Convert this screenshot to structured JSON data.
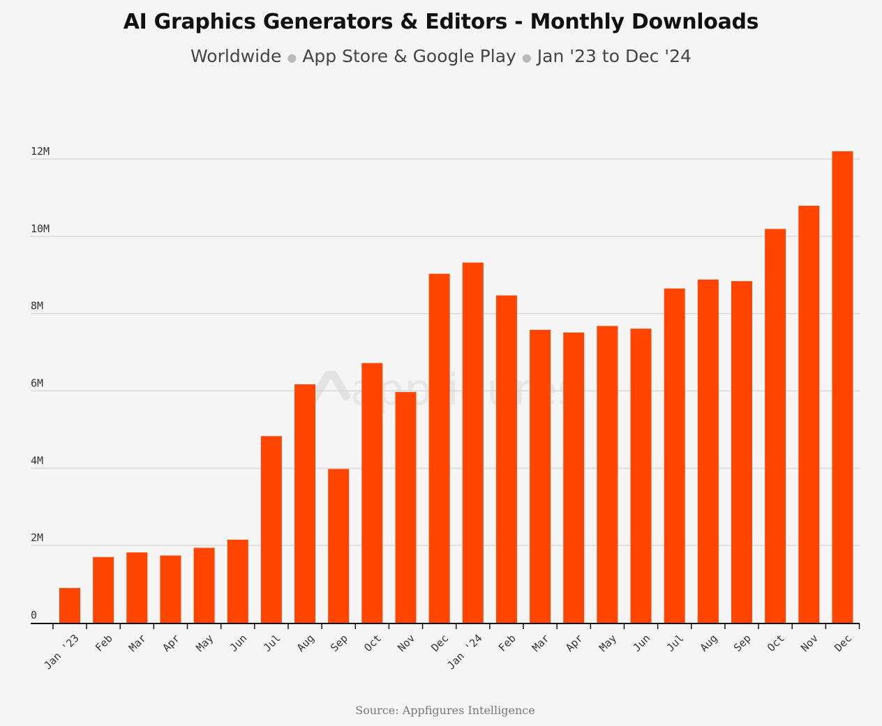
{
  "header": {
    "title": "AI Graphics Generators & Editors - Monthly Downloads",
    "subtitle_parts": [
      "Worldwide",
      "App Store & Google Play",
      "Jan '23 to Dec '24"
    ]
  },
  "footer": {
    "source": "Source: Appfigures Intelligence"
  },
  "watermark": {
    "text": "appfigures",
    "icon": "appfigures-logo-icon"
  },
  "colors": {
    "bar": "#ff4500",
    "grid": "#d8d8d8",
    "axis": "#111111",
    "background": "#f5f5f5"
  },
  "chart_data": {
    "type": "bar",
    "title": "AI Graphics Generators & Editors - Monthly Downloads",
    "subtitle": "Worldwide · App Store & Google Play · Jan '23 to Dec '24",
    "xlabel": "",
    "ylabel": "",
    "ylim": [
      0,
      12000000
    ],
    "yticks": [
      0,
      2000000,
      4000000,
      6000000,
      8000000,
      10000000,
      12000000
    ],
    "ytick_labels": [
      "0",
      "2M",
      "4M",
      "6M",
      "8M",
      "10M",
      "12M"
    ],
    "grid": true,
    "legend": "none",
    "categories": [
      "Jan '23",
      "Feb",
      "Mar",
      "Apr",
      "May",
      "Jun",
      "Jul",
      "Aug",
      "Sep",
      "Oct",
      "Nov",
      "Dec",
      "Jan '24",
      "Feb",
      "Mar",
      "Apr",
      "May",
      "Jun",
      "Jul",
      "Aug",
      "Sep",
      "Oct",
      "Nov",
      "Dec"
    ],
    "values": [
      900000,
      1700000,
      1820000,
      1740000,
      1940000,
      2150000,
      4830000,
      6170000,
      3980000,
      6720000,
      5970000,
      9030000,
      9320000,
      8470000,
      7580000,
      7510000,
      7680000,
      7610000,
      8650000,
      8880000,
      8840000,
      10190000,
      10790000,
      12200000
    ]
  }
}
